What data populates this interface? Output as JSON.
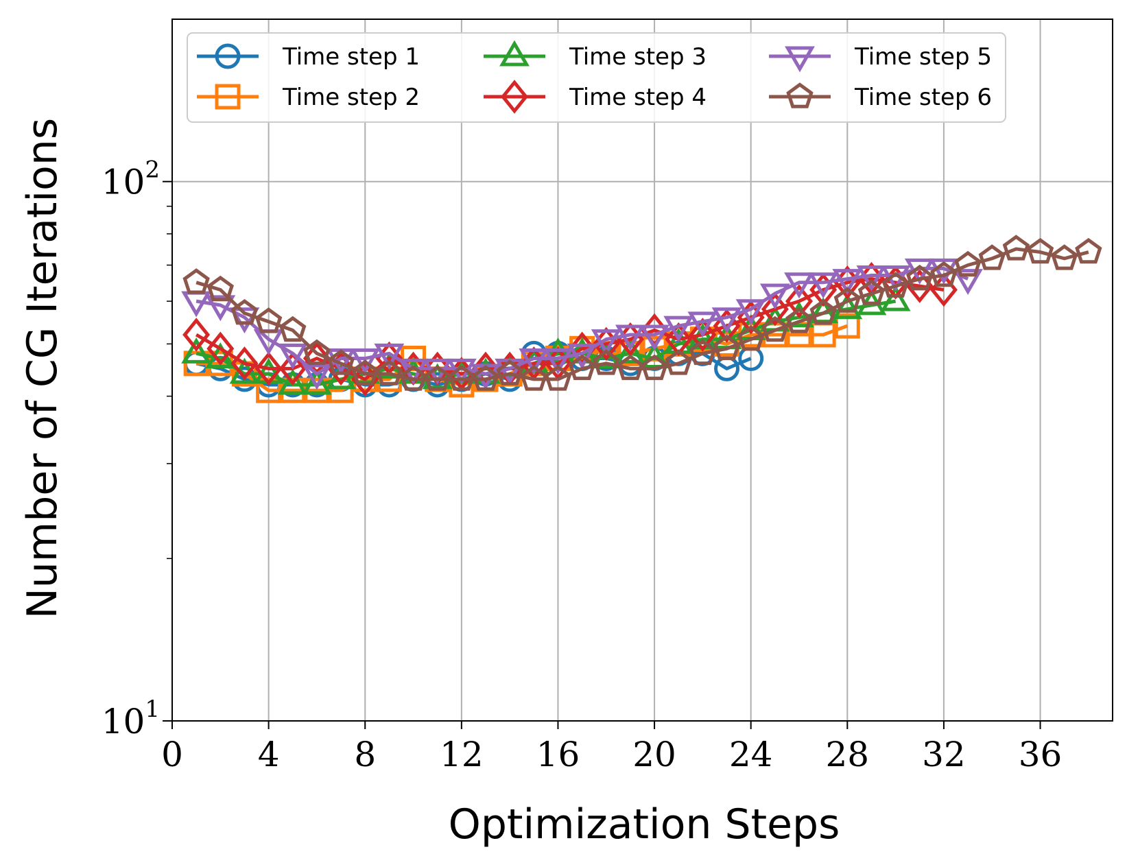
{
  "chart_data": {
    "type": "line",
    "title": "",
    "xlabel": "Optimization Steps",
    "ylabel": "Number of CG Iterations",
    "xlim": [
      0,
      39
    ],
    "ylim": [
      10,
      200
    ],
    "yscale": "log",
    "grid": true,
    "legend": "top",
    "x_ticks": [
      "0",
      "4",
      "8",
      "12",
      "16",
      "20",
      "24",
      "28",
      "32",
      "36"
    ],
    "y_ticks": [
      {
        "base": "10",
        "exp": "1"
      },
      {
        "base": "10",
        "exp": "2"
      }
    ],
    "series": [
      {
        "name": "Time step 1",
        "color": "#1f77b4",
        "marker": "circle",
        "x": [
          1,
          2,
          3,
          4,
          5,
          6,
          7,
          8,
          9,
          10,
          11,
          12,
          13,
          14,
          15,
          16,
          17,
          18,
          19,
          20,
          21,
          22,
          23,
          24
        ],
        "y": [
          46,
          45,
          43,
          42,
          42,
          42,
          43,
          42,
          42,
          43,
          42,
          43,
          44,
          43,
          48,
          48,
          47,
          47,
          46,
          47,
          48,
          48,
          45,
          47
        ]
      },
      {
        "name": "Time step 2",
        "color": "#ff7f0e",
        "marker": "square",
        "x": [
          1,
          2,
          3,
          4,
          5,
          6,
          7,
          8,
          9,
          10,
          11,
          12,
          13,
          14,
          15,
          16,
          17,
          18,
          19,
          20,
          21,
          22,
          23,
          24,
          25,
          26,
          27,
          28
        ],
        "y": [
          46,
          46,
          44,
          41,
          41,
          41,
          41,
          43,
          43,
          47,
          43,
          42,
          43,
          44,
          46,
          47,
          49,
          48,
          48,
          49,
          50,
          51,
          50,
          52,
          52,
          52,
          52,
          54
        ]
      },
      {
        "name": "Time step 3",
        "color": "#2ca02c",
        "marker": "triangle-up",
        "x": [
          1,
          2,
          3,
          4,
          5,
          6,
          7,
          8,
          9,
          10,
          11,
          12,
          13,
          14,
          15,
          16,
          17,
          18,
          19,
          20,
          21,
          22,
          23,
          24,
          25,
          26,
          27,
          28,
          29,
          30
        ],
        "y": [
          48,
          47,
          44,
          44,
          42,
          42,
          43,
          44,
          45,
          44,
          43,
          44,
          44,
          45,
          46,
          48,
          48,
          47,
          48,
          47,
          50,
          51,
          51,
          53,
          55,
          56,
          57,
          58,
          59,
          60
        ]
      },
      {
        "name": "Time step 4",
        "color": "#d62728",
        "marker": "diamond",
        "x": [
          1,
          2,
          3,
          4,
          5,
          6,
          7,
          8,
          9,
          10,
          11,
          12,
          13,
          14,
          15,
          16,
          17,
          18,
          19,
          20,
          21,
          22,
          23,
          24,
          25,
          26,
          27,
          28,
          29,
          30,
          31,
          32
        ],
        "y": [
          52,
          49,
          46,
          45,
          45,
          47,
          45,
          43,
          47,
          45,
          45,
          44,
          45,
          45,
          46,
          46,
          49,
          50,
          51,
          53,
          51,
          52,
          54,
          56,
          58,
          60,
          63,
          65,
          66,
          65,
          64,
          63
        ]
      },
      {
        "name": "Time step 5",
        "color": "#9467bd",
        "marker": "triangle-down",
        "x": [
          1,
          2,
          3,
          4,
          5,
          6,
          7,
          8,
          9,
          10,
          11,
          12,
          13,
          14,
          15,
          16,
          17,
          18,
          19,
          20,
          21,
          22,
          23,
          24,
          25,
          26,
          27,
          28,
          29,
          30,
          31,
          32,
          33
        ],
        "y": [
          60,
          59,
          56,
          51,
          48,
          44,
          47,
          47,
          48,
          45,
          45,
          45,
          44,
          45,
          47,
          47,
          48,
          51,
          52,
          52,
          54,
          55,
          56,
          58,
          62,
          65,
          65,
          66,
          67,
          67,
          69,
          69,
          66
        ]
      },
      {
        "name": "Time step 6",
        "color": "#8c564b",
        "marker": "pentagon",
        "x": [
          1,
          2,
          3,
          4,
          5,
          6,
          7,
          8,
          9,
          10,
          11,
          12,
          13,
          14,
          15,
          16,
          17,
          18,
          19,
          20,
          21,
          22,
          23,
          24,
          25,
          26,
          27,
          28,
          29,
          30,
          31,
          32,
          33,
          34,
          35,
          36,
          37,
          38
        ],
        "y": [
          65,
          63,
          57,
          55,
          53,
          48,
          46,
          44,
          44,
          43,
          43,
          43,
          43,
          44,
          43,
          43,
          45,
          46,
          45,
          45,
          46,
          48,
          49,
          51,
          53,
          55,
          57,
          60,
          62,
          64,
          66,
          67,
          70,
          72,
          75,
          74,
          72,
          74
        ]
      }
    ]
  }
}
